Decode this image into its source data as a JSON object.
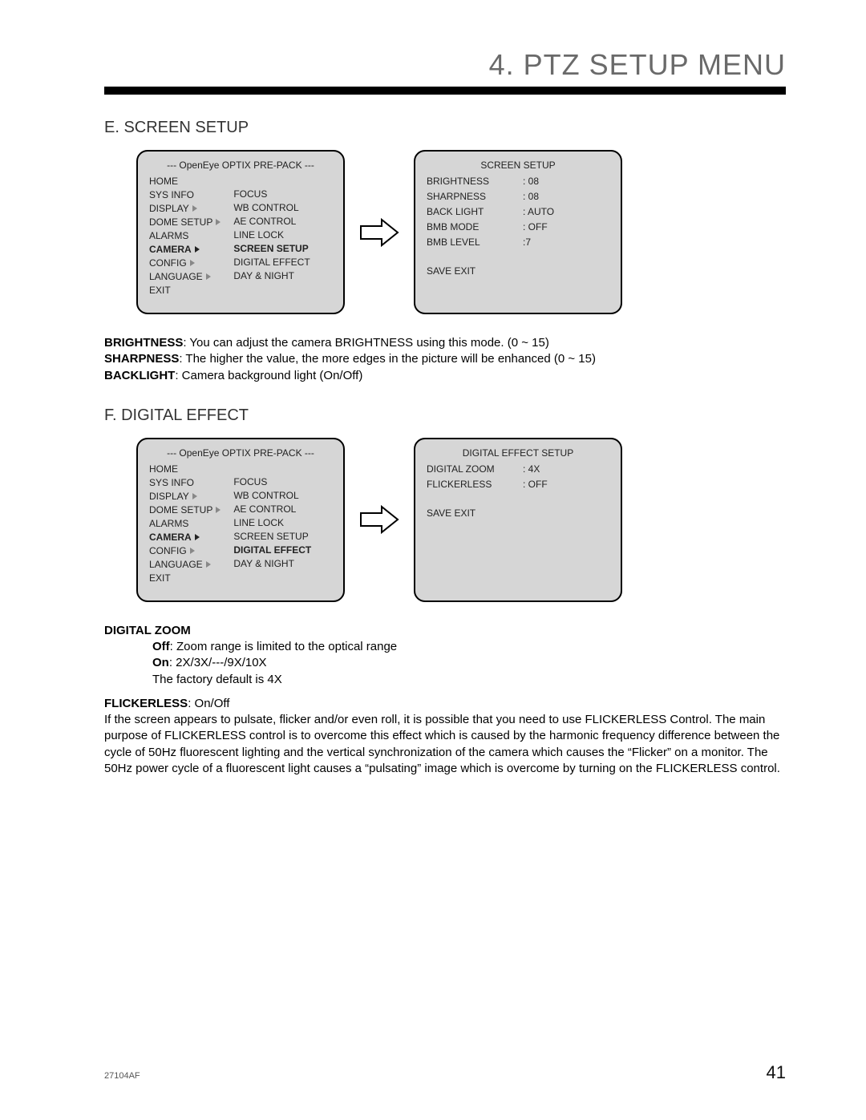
{
  "chapter_title": "4. PTZ SETUP MENU",
  "sectionE": {
    "heading": "E.  SCREEN SETUP",
    "panel_title": "--- OpenEye OPTIX PRE-PACK ---",
    "left_menu": [
      "HOME",
      "SYS INFO",
      "DISPLAY",
      "DOME SETUP",
      "ALARMS",
      "CAMERA",
      "CONFIG",
      "LANGUAGE",
      "EXIT"
    ],
    "left_menu_arrows": {
      "DISPLAY": "outline",
      "DOME SETUP": "outline",
      "CAMERA": "solid",
      "CONFIG": "outline",
      "LANGUAGE": "outline"
    },
    "left_menu_bold": [
      "CAMERA"
    ],
    "sub_menu": [
      "FOCUS",
      "WB CONTROL",
      "AE CONTROL",
      "LINE LOCK",
      "SCREEN SETUP",
      "DIGITAL EFFECT",
      "DAY & NIGHT"
    ],
    "sub_menu_bold": [
      "SCREEN SETUP"
    ],
    "right_title": "SCREEN SETUP",
    "right_rows": [
      {
        "label": "BRIGHTNESS",
        "value": ": 08"
      },
      {
        "label": "SHARPNESS",
        "value": ": 08"
      },
      {
        "label": "BACK LIGHT",
        "value": ": AUTO"
      },
      {
        "label": "BMB MODE",
        "value": ": OFF"
      },
      {
        "label": "BMB LEVEL",
        "value": ":7"
      }
    ],
    "save_exit": "SAVE EXIT"
  },
  "descE": {
    "brightness_label": "BRIGHTNESS",
    "brightness_text": ": You can adjust the camera BRIGHTNESS using this mode. (0 ~ 15)",
    "sharpness_label": "SHARPNESS",
    "sharpness_text": ": The higher the value, the more edges in the picture will be enhanced (0 ~ 15)",
    "backlight_label": "BACKLIGHT",
    "backlight_text": ": Camera background light (On/Off)"
  },
  "sectionF": {
    "heading": "F.  DIGITAL EFFECT",
    "panel_title": "--- OpenEye OPTIX PRE-PACK ---",
    "left_menu": [
      "HOME",
      "SYS INFO",
      "DISPLAY",
      "DOME SETUP",
      "ALARMS",
      "CAMERA",
      "CONFIG",
      "LANGUAGE",
      "EXIT"
    ],
    "left_menu_arrows": {
      "DISPLAY": "outline",
      "DOME SETUP": "outline",
      "CAMERA": "solid",
      "CONFIG": "outline",
      "LANGUAGE": "outline"
    },
    "left_menu_bold": [
      "CAMERA"
    ],
    "sub_menu": [
      "FOCUS",
      "WB CONTROL",
      "AE CONTROL",
      "LINE LOCK",
      "SCREEN SETUP",
      "DIGITAL EFFECT",
      "DAY & NIGHT"
    ],
    "sub_menu_bold": [
      "DIGITAL EFFECT"
    ],
    "right_title": "DIGITAL EFFECT SETUP",
    "right_rows": [
      {
        "label": "DIGITAL ZOOM",
        "value": ": 4X"
      },
      {
        "label": "FLICKERLESS",
        "value": ": OFF"
      }
    ],
    "save_exit": "SAVE EXIT"
  },
  "descF": {
    "dz_label": "DIGITAL ZOOM",
    "dz_off_label": "Off",
    "dz_off_text": ": Zoom range is limited to the optical range",
    "dz_on_label": "On",
    "dz_on_text": ": 2X/3X/---/9X/10X",
    "dz_default": "The factory default is 4X",
    "fl_label": "FLICKERLESS",
    "fl_text": ": On/Off",
    "fl_para": "If the screen appears to pulsate, flicker and/or even roll, it is possible that you need to use FLICKERLESS Control. The main purpose of FLICKERLESS control is to overcome this effect which is caused by the harmonic frequency difference between the cycle of 50Hz fluorescent lighting and the vertical synchronization of the camera which causes the “Flicker” on a monitor. The 50Hz power cycle of a fluorescent light causes a “pulsating” image which is overcome by turning on the FLICKERLESS control."
  },
  "footer": {
    "doc_code": "27104AF",
    "page_num": "41"
  },
  "colors": {
    "panel_bg": "#d6d6d6",
    "rule": "#000000",
    "title_gray": "#6a6a6a"
  }
}
